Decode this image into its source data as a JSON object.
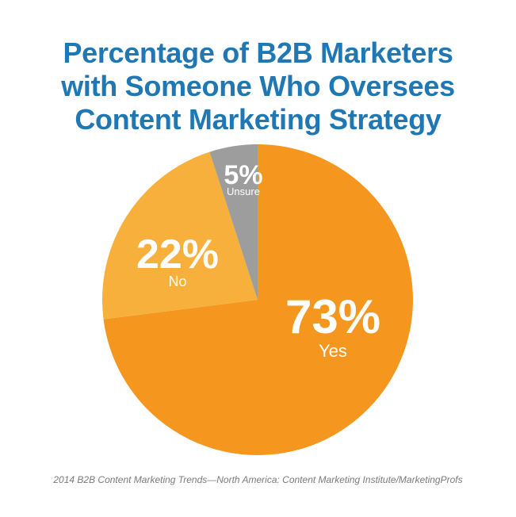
{
  "chart_data": {
    "type": "pie",
    "title_lines": [
      "Percentage of B2B Marketers",
      "with Someone Who Oversees",
      "Content Marketing Strategy"
    ],
    "slices": [
      {
        "label": "Yes",
        "value": 73,
        "value_text": "73%",
        "color": "#f5961e"
      },
      {
        "label": "No",
        "value": 22,
        "value_text": "22%",
        "color": "#f7b03c"
      },
      {
        "label": "Unsure",
        "value": 5,
        "value_text": "5%",
        "color": "#9d9d9d"
      }
    ],
    "start": "12 o'clock",
    "direction": "clockwise",
    "label_color": "#ffffff",
    "source": "2014 B2B Content Marketing Trends—North America: Content Marketing Institute/MarketingProfs"
  }
}
